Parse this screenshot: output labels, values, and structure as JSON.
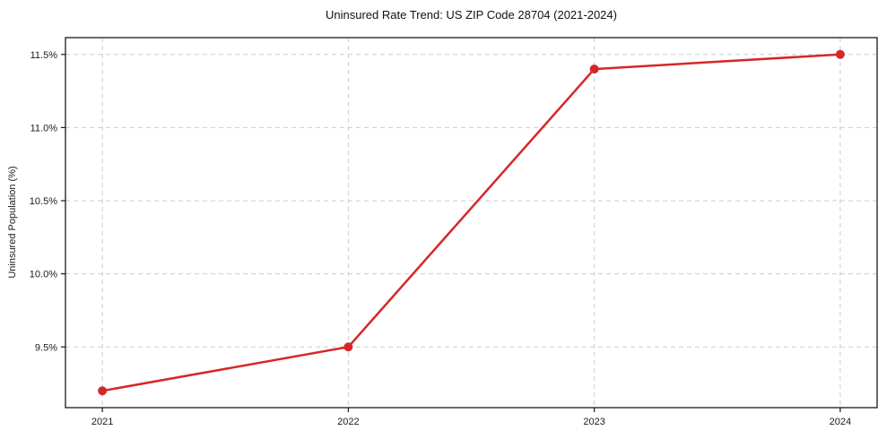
{
  "chart_data": {
    "type": "line",
    "title": "Uninsured Rate Trend: US ZIP Code 28704 (2021-2024)",
    "xlabel": "",
    "ylabel": "Uninsured Population (%)",
    "x": [
      2021,
      2022,
      2023,
      2024
    ],
    "xtick_labels": [
      "2021",
      "2022",
      "2023",
      "2024"
    ],
    "values": [
      9.2,
      9.5,
      11.4,
      11.5
    ],
    "yticks": [
      9.5,
      10.0,
      10.5,
      11.0,
      11.5
    ],
    "ytick_labels": [
      "9.5%",
      "10.0%",
      "10.5%",
      "11.0%",
      "11.5%"
    ],
    "xlim": [
      2020.85,
      2024.15
    ],
    "ylim": [
      9.085,
      11.615
    ],
    "grid": true,
    "grid_style": "dashed",
    "legend": "none",
    "line_color": "#d62728",
    "grid_color": "#cccccc",
    "axis_color": "#1a1a1a",
    "marker": "circle"
  }
}
